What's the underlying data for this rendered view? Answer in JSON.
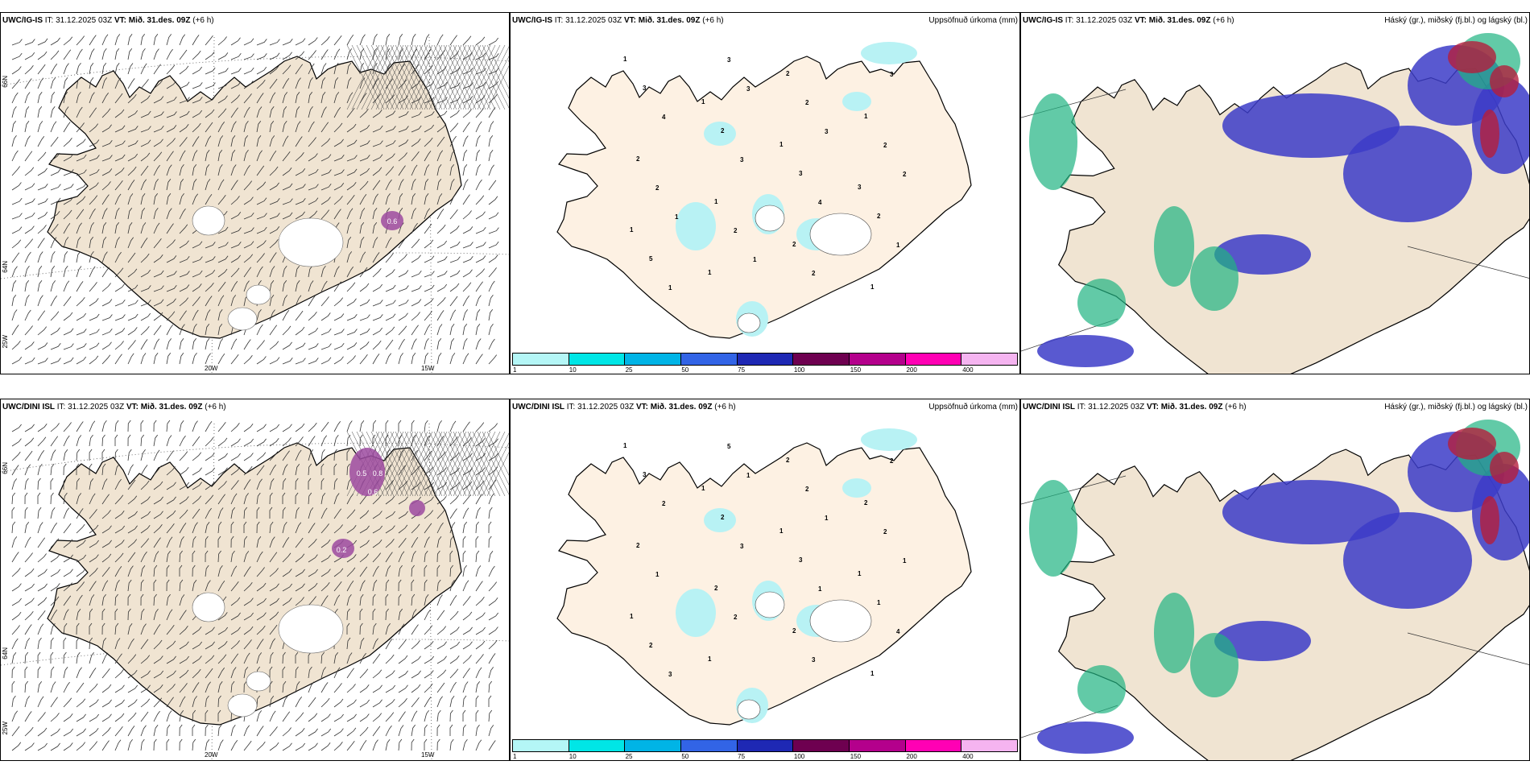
{
  "rows": [
    {
      "model": "UWC/IG-IS",
      "it_label": "IT: 31.12.2025 03Z",
      "vt_label": "VT: Mið. 31.des. 09Z",
      "lead": "(+6 h)"
    },
    {
      "model": "UWC/DINI ISL",
      "it_label": "IT: 31.12.2025 03Z",
      "vt_label": "VT: Mið. 31.des. 09Z",
      "lead": "(+6 h)"
    }
  ],
  "precip_title": "Uppsöfnuð úrkoma (mm)",
  "cloud_title": "Háský (gr.), miðský (fj.bl.) og lágský (bl.)",
  "lon_labels": [
    "20W",
    "15W"
  ],
  "lat_labels": [
    "66N",
    "64N",
    "25W"
  ],
  "colorbar": {
    "ticks": [
      "1",
      "10",
      "25",
      "50",
      "75",
      "100",
      "150",
      "200",
      "400"
    ],
    "colors": [
      "#b4f6f6",
      "#00e6e6",
      "#00b4e6",
      "#3264e6",
      "#1e28b4",
      "#6e0050",
      "#b4008c",
      "#ff00b4",
      "#f5b4f0"
    ]
  },
  "colors": {
    "land": "#f0e4d2",
    "land_precip": "#fdf1e3",
    "precip_light": "#b8f2f4",
    "cloud_low": "#3c3cc8",
    "cloud_mid": "#20b482",
    "cloud_high": "#b41e3c",
    "icing": "#9c4aa0"
  },
  "precip_numbers_top": [
    "1",
    "1",
    "1",
    "3",
    "1",
    "1",
    "2",
    "1",
    "2",
    "1",
    "2",
    "1",
    "3",
    "2",
    "3",
    "2",
    "5",
    "3",
    "2",
    "2",
    "2",
    "2",
    "2",
    "3",
    "4",
    "3",
    "4",
    "1",
    "1",
    "3",
    "3",
    "2",
    "1",
    "1"
  ],
  "precip_numbers_bottom": [
    "1",
    "1",
    "1",
    "1",
    "1",
    "1",
    "2",
    "2",
    "2",
    "2",
    "2",
    "1",
    "3",
    "2",
    "3",
    "1",
    "2",
    "5",
    "2",
    "2",
    "1",
    "2",
    "3",
    "2",
    "2",
    "3",
    "1",
    "4",
    "3",
    "1",
    "1",
    "1"
  ],
  "icing_labels_top": [
    "0.6"
  ],
  "icing_labels_bottom": [
    "0.5",
    "0.8",
    "0.6",
    "0.2"
  ]
}
